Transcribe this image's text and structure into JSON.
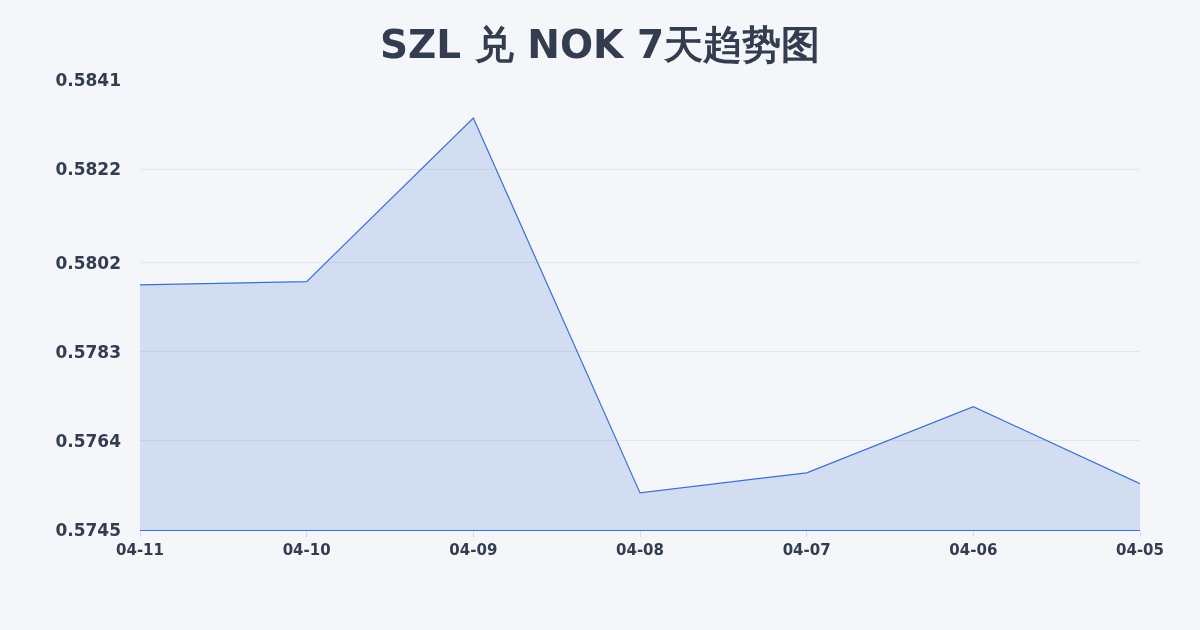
{
  "chart_data": {
    "type": "area",
    "title": "SZL 兑 NOK 7天趋势图",
    "categories": [
      "04-11",
      "04-10",
      "04-09",
      "04-08",
      "04-07",
      "04-06",
      "04-05"
    ],
    "series": [
      {
        "color": "#3b6fd4",
        "values": [
          0.57973,
          0.5798,
          0.58329,
          0.57529,
          0.57572,
          0.57713,
          0.57549
        ]
      }
    ],
    "ylim": [
      0.5745,
      0.5841
    ],
    "yticks": [
      0.5745,
      0.5764,
      0.5783,
      0.5802,
      0.5822,
      0.5841
    ],
    "grid": "y"
  }
}
